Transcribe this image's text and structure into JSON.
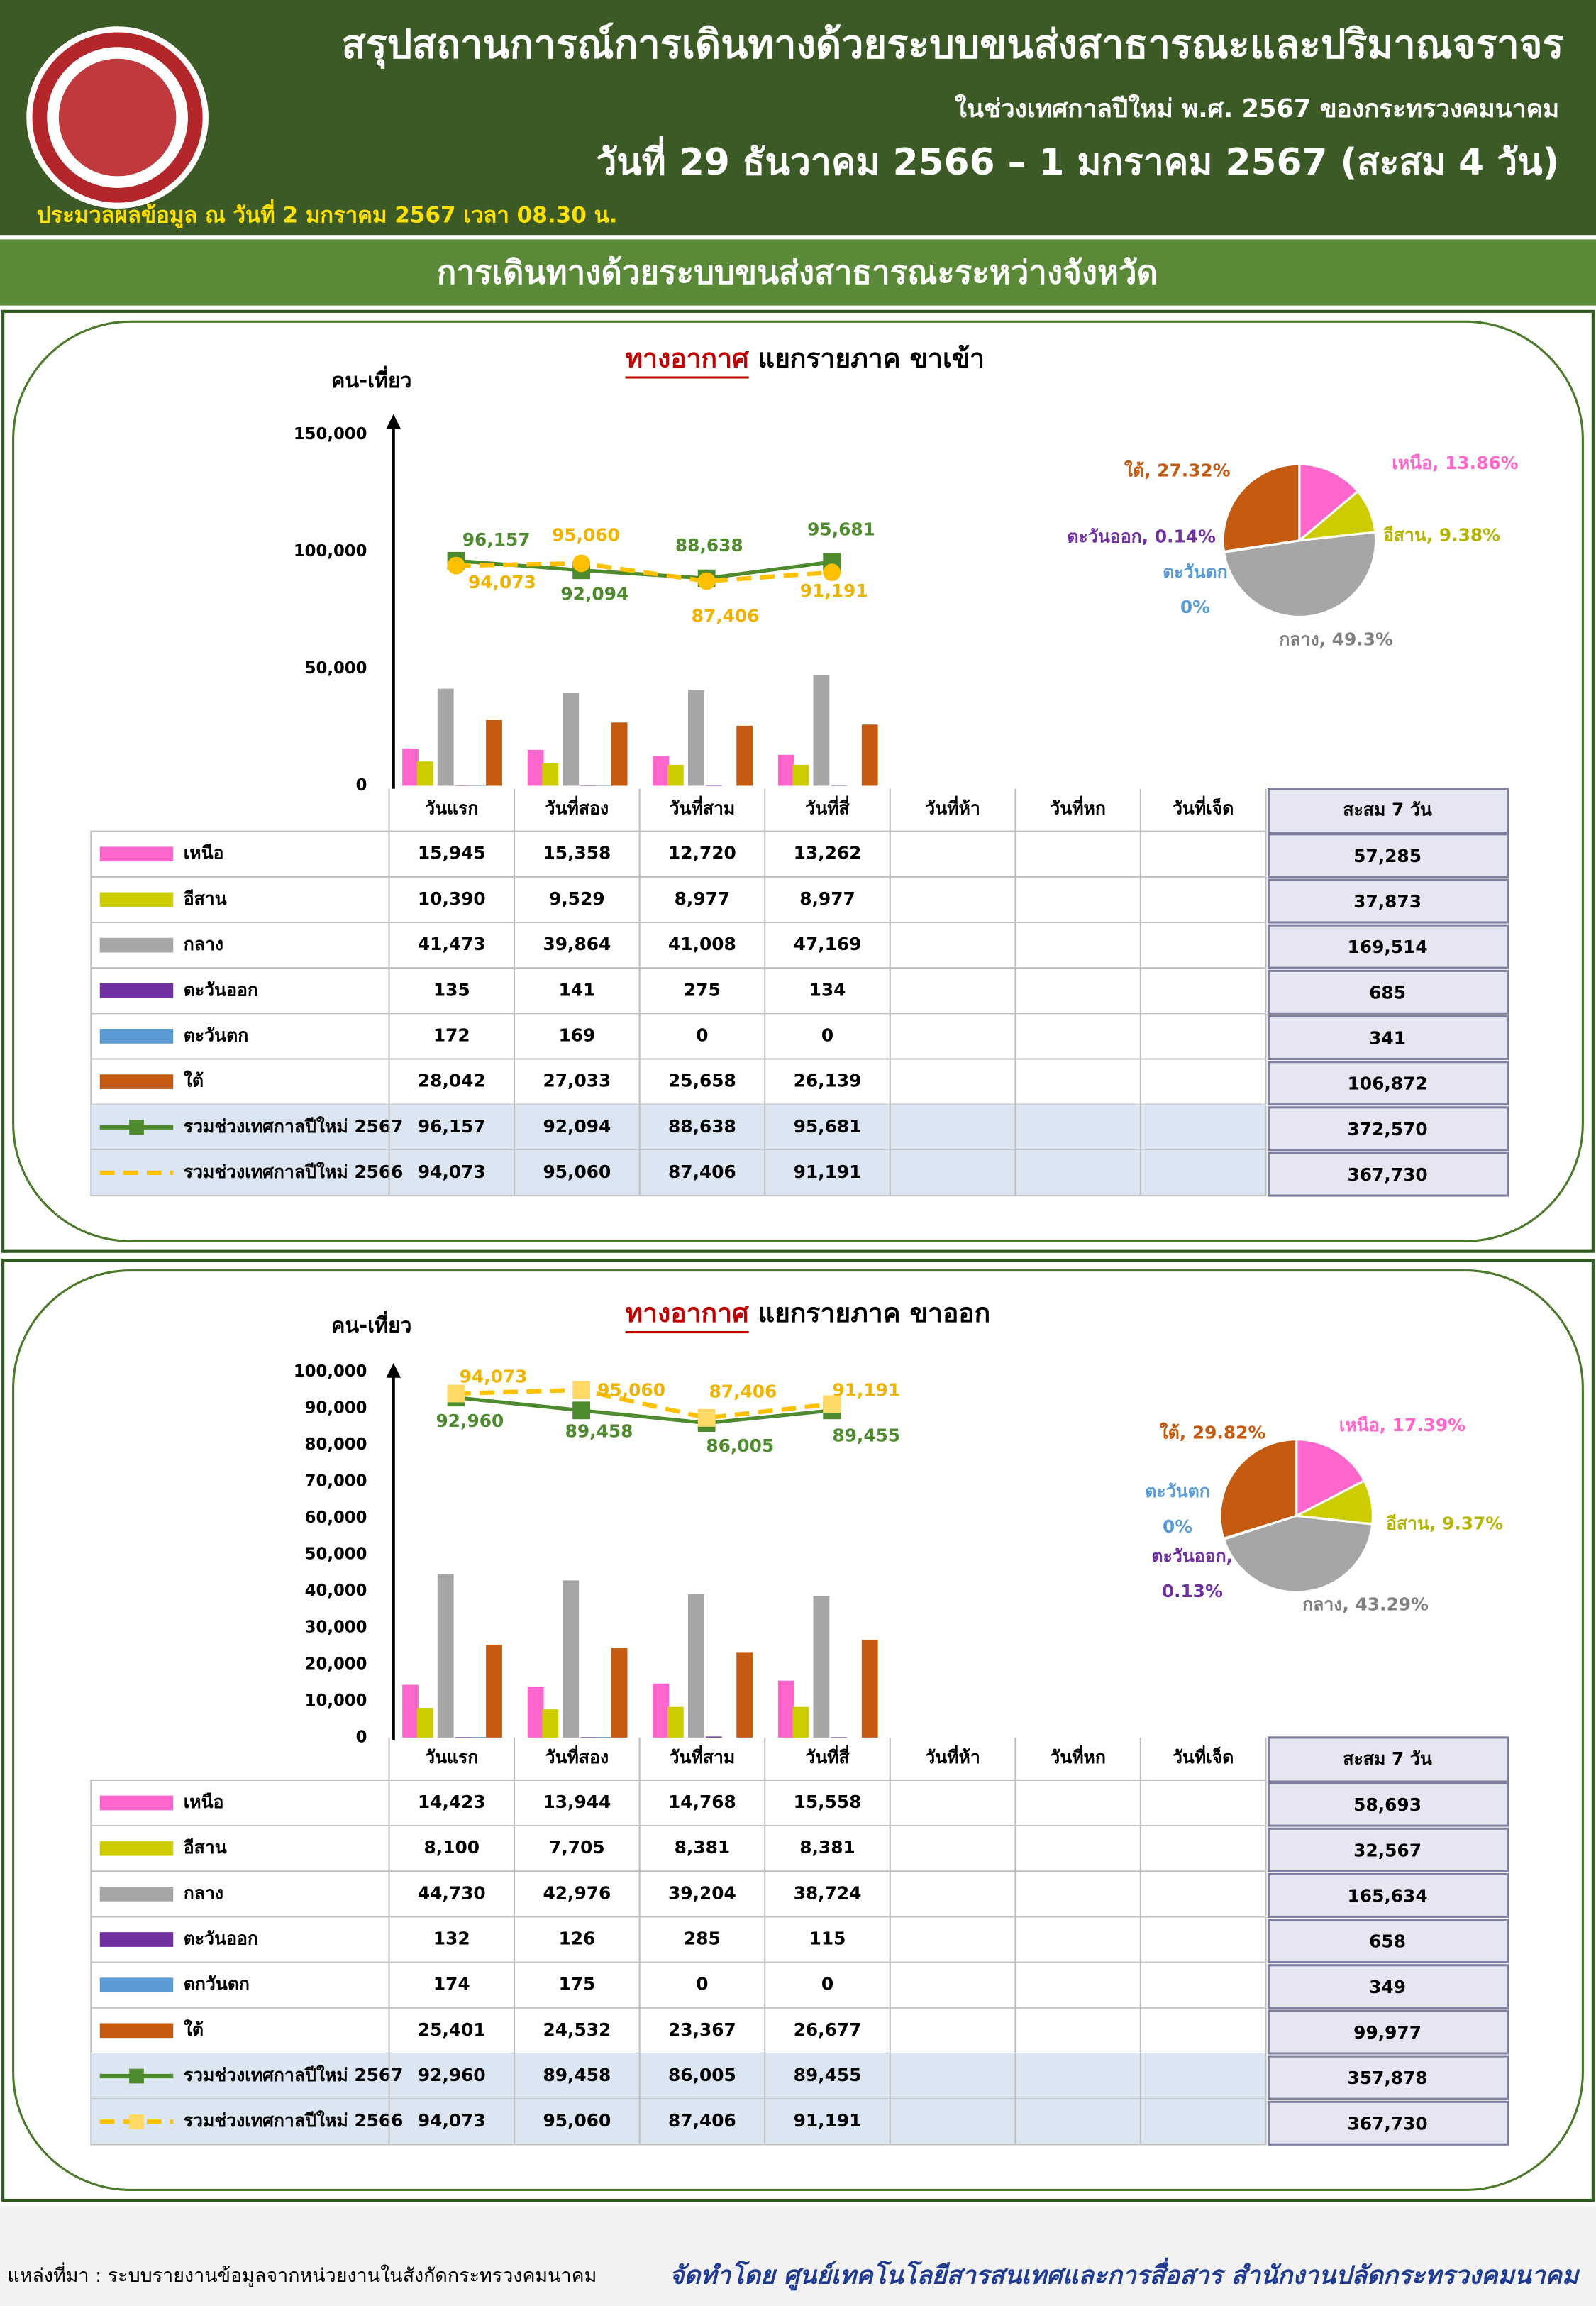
{
  "header": {
    "title": "สรุปสถานการณ์การเดินทางด้วยระบบขนส่งสาธารณะและปริมาณจราจร",
    "subtitle": "ในช่วงเทศกาลปีใหม่ พ.ศ. 2567 ของกระทรวงคมนาคม",
    "date_range": "วันที่ 29 ธันวาคม 2566 – 1 มกราคม 2567 (สะสม 4 วัน)",
    "processed": "ประมวลผลข้อมูล ณ วันที่  2 มกราคม 2567 เวลา 08.30 น."
  },
  "section_title": "การเดินทางด้วยระบบขนส่งสาธารณะระหว่างจังหวัด",
  "chart_data": [
    {
      "type": "bar",
      "title_mode": "ทางอากาศ",
      "title": "แยกรายภาค ขาเข้า",
      "ylabel": "คน-เที่ยว",
      "categories": [
        "วันแรก",
        "วันที่สอง",
        "วันที่สาม",
        "วันที่สี่",
        "วันที่ห้า",
        "วันที่หก",
        "วันที่เจ็ด"
      ],
      "ylim": [
        0,
        150000
      ],
      "yticks": [
        0,
        {
          "value": 50000,
          "label": "50,000"
        },
        {
          "value": 100000,
          "label": "100,000"
        },
        {
          "value": 150000,
          "label": "150,000"
        }
      ],
      "total_header": "สะสม 7 วัน",
      "series": [
        {
          "name": "เหนือ",
          "color": "#ff66cc",
          "values": [
            15945,
            15358,
            12720,
            13262,
            null,
            null,
            null
          ],
          "value_labels": [
            "15,945",
            "15,358",
            "12,720",
            "13,262",
            null,
            null,
            null
          ],
          "total": 57285,
          "total_label": "57,285"
        },
        {
          "name": "อีสาน",
          "color": "#cccc00",
          "values": [
            10390,
            9529,
            8977,
            8977,
            null,
            null,
            null
          ],
          "value_labels": [
            "10,390",
            "9,529",
            "8,977",
            "8,977",
            null,
            null,
            null
          ],
          "total": 37873,
          "total_label": "37,873"
        },
        {
          "name": "กลาง",
          "color": "#a6a6a6",
          "values": [
            41473,
            39864,
            41008,
            47169,
            null,
            null,
            null
          ],
          "value_labels": [
            "41,473",
            "39,864",
            "41,008",
            "47,169",
            null,
            null,
            null
          ],
          "total": 169514,
          "total_label": "169,514"
        },
        {
          "name": "ตะวันออก",
          "color": "#7030a0",
          "values": [
            135,
            141,
            275,
            134,
            null,
            null,
            null
          ],
          "value_labels": [
            "135",
            "141",
            "275",
            "134",
            null,
            null,
            null
          ],
          "total": 685,
          "total_label": "685"
        },
        {
          "name": "ตะวันตก",
          "color": "#5b9bd5",
          "values": [
            172,
            169,
            0,
            0,
            null,
            null,
            null
          ],
          "value_labels": [
            "172",
            "169",
            "0",
            "0",
            null,
            null,
            null
          ],
          "total": 341,
          "total_label": "341"
        },
        {
          "name": "ใต้",
          "color": "#c55a11",
          "values": [
            28042,
            27033,
            25658,
            26139,
            null,
            null,
            null
          ],
          "value_labels": [
            "28,042",
            "27,033",
            "25,658",
            "26,139",
            null,
            null,
            null
          ],
          "total": 106872,
          "total_label": "106,872"
        },
        {
          "name": "รวมช่วงเทศกาลปีใหม่ 2567",
          "type": "line",
          "color": "#4e8a2e",
          "marker": "square",
          "dashed": false,
          "values": [
            96157,
            92094,
            88638,
            95681,
            null,
            null,
            null
          ],
          "value_labels": [
            "96,157",
            "92,094",
            "88,638",
            "95,681",
            null,
            null,
            null
          ],
          "total": 372570,
          "total_label": "372,570"
        },
        {
          "name": "รวมช่วงเทศกาลปีใหม่ 2566",
          "type": "line",
          "color": "#ffc000",
          "marker": "circle",
          "dashed": true,
          "values": [
            94073,
            95060,
            87406,
            91191,
            null,
            null,
            null
          ],
          "value_labels": [
            "94,073",
            "95,060",
            "87,406",
            "91,191",
            null,
            null,
            null
          ],
          "total": 367730,
          "total_label": "367,730"
        }
      ]
    },
    {
      "type": "pie",
      "values": [
        13.86,
        9.38,
        49.3,
        0.14,
        0,
        27.32
      ],
      "colors": [
        "#ff66cc",
        "#cccc00",
        "#a6a6a6",
        "#7030a0",
        "#5b9bd5",
        "#c55a11"
      ],
      "labels": [
        [
          "เหนือ, 13.86%"
        ],
        [
          "อีสาน, 9.38%"
        ],
        [
          "กลาง, 49.3%"
        ],
        [
          "ตะวันออก, 0.14%"
        ],
        [
          "ตะวันตก",
          "0%"
        ],
        [
          "ใต้, 27.32%"
        ]
      ]
    },
    {
      "type": "bar",
      "title_mode": "ทางอากาศ",
      "title": "แยกรายภาค ขาออก",
      "ylabel": "คน-เที่ยว",
      "categories": [
        "วันแรก",
        "วันที่สอง",
        "วันที่สาม",
        "วันที่สี่",
        "วันที่ห้า",
        "วันที่หก",
        "วันที่เจ็ด"
      ],
      "ylim": [
        0,
        100000
      ],
      "yticks": [
        0,
        {
          "value": 10000,
          "label": "10,000"
        },
        {
          "value": 20000,
          "label": "20,000"
        },
        {
          "value": 30000,
          "label": "30,000"
        },
        {
          "value": 40000,
          "label": "40,000"
        },
        {
          "value": 50000,
          "label": "50,000"
        },
        {
          "value": 60000,
          "label": "60,000"
        },
        {
          "value": 70000,
          "label": "70,000"
        },
        {
          "value": 80000,
          "label": "80,000"
        },
        {
          "value": 90000,
          "label": "90,000"
        },
        {
          "value": 100000,
          "label": "100,000"
        }
      ],
      "total_header": "สะสม 7 วัน",
      "series": [
        {
          "name": "เหนือ",
          "color": "#ff66cc",
          "values": [
            14423,
            13944,
            14768,
            15558,
            null,
            null,
            null
          ],
          "value_labels": [
            "14,423",
            "13,944",
            "14,768",
            "15,558",
            null,
            null,
            null
          ],
          "total": 58693,
          "total_label": "58,693"
        },
        {
          "name": "อีสาน",
          "color": "#cccc00",
          "values": [
            8100,
            7705,
            8381,
            8381,
            null,
            null,
            null
          ],
          "value_labels": [
            "8,100",
            "7,705",
            "8,381",
            "8,381",
            null,
            null,
            null
          ],
          "total": 32567,
          "total_label": "32,567"
        },
        {
          "name": "กลาง",
          "color": "#a6a6a6",
          "values": [
            44730,
            42976,
            39204,
            38724,
            null,
            null,
            null
          ],
          "value_labels": [
            "44,730",
            "42,976",
            "39,204",
            "38,724",
            null,
            null,
            null
          ],
          "total": 165634,
          "total_label": "165,634"
        },
        {
          "name": "ตะวันออก",
          "color": "#7030a0",
          "values": [
            132,
            126,
            285,
            115,
            null,
            null,
            null
          ],
          "value_labels": [
            "132",
            "126",
            "285",
            "115",
            null,
            null,
            null
          ],
          "total": 658,
          "total_label": "658"
        },
        {
          "name": "ตกวันตก",
          "color": "#5b9bd5",
          "values": [
            174,
            175,
            0,
            0,
            null,
            null,
            null
          ],
          "value_labels": [
            "174",
            "175",
            "0",
            "0",
            null,
            null,
            null
          ],
          "total": 349,
          "total_label": "349"
        },
        {
          "name": "ใต้",
          "color": "#c55a11",
          "values": [
            25401,
            24532,
            23367,
            26677,
            null,
            null,
            null
          ],
          "value_labels": [
            "25,401",
            "24,532",
            "23,367",
            "26,677",
            null,
            null,
            null
          ],
          "total": 99977,
          "total_label": "99,977"
        },
        {
          "name": "รวมช่วงเทศกาลปีใหม่ 2567",
          "type": "line",
          "color": "#4e8a2e",
          "marker": "square",
          "dashed": false,
          "values": [
            92960,
            89458,
            86005,
            89455,
            null,
            null,
            null
          ],
          "value_labels": [
            "92,960",
            "89,458",
            "86,005",
            "89,455",
            null,
            null,
            null
          ],
          "total": 357878,
          "total_label": "357,878"
        },
        {
          "name": "รวมช่วงเทศกาลปีใหม่ 2566",
          "type": "line",
          "color": "#ffc000",
          "marker": "square",
          "dashed": true,
          "values": [
            94073,
            95060,
            87406,
            91191,
            null,
            null,
            null
          ],
          "value_labels": [
            "94,073",
            "95,060",
            "87,406",
            "91,191",
            null,
            null,
            null
          ],
          "total": 367730,
          "total_label": "367,730"
        }
      ]
    },
    {
      "type": "pie",
      "values": [
        17.39,
        9.37,
        43.29,
        0.13,
        0,
        29.82
      ],
      "colors": [
        "#ff66cc",
        "#cccc00",
        "#a6a6a6",
        "#7030a0",
        "#5b9bd5",
        "#c55a11"
      ],
      "labels": [
        [
          "เหนือ, 17.39%"
        ],
        [
          "อีสาน, 9.37%"
        ],
        [
          "กลาง, 43.29%"
        ],
        [
          "ตะวันออก,",
          "0.13%"
        ],
        [
          "ตะวันตก",
          "0%"
        ],
        [
          "ใต้, 29.82%"
        ]
      ]
    }
  ],
  "footer": {
    "source": "แหล่งที่มา : ระบบรายงานข้อมูลจากหน่วยงานในสังกัดกระทรวงคมนาคม",
    "credit": "จัดทำโดย ศูนย์เทคโนโลยีสารสนเทศและการสื่อสาร สำนักงานปลัดกระทรวงคมนาคม"
  }
}
